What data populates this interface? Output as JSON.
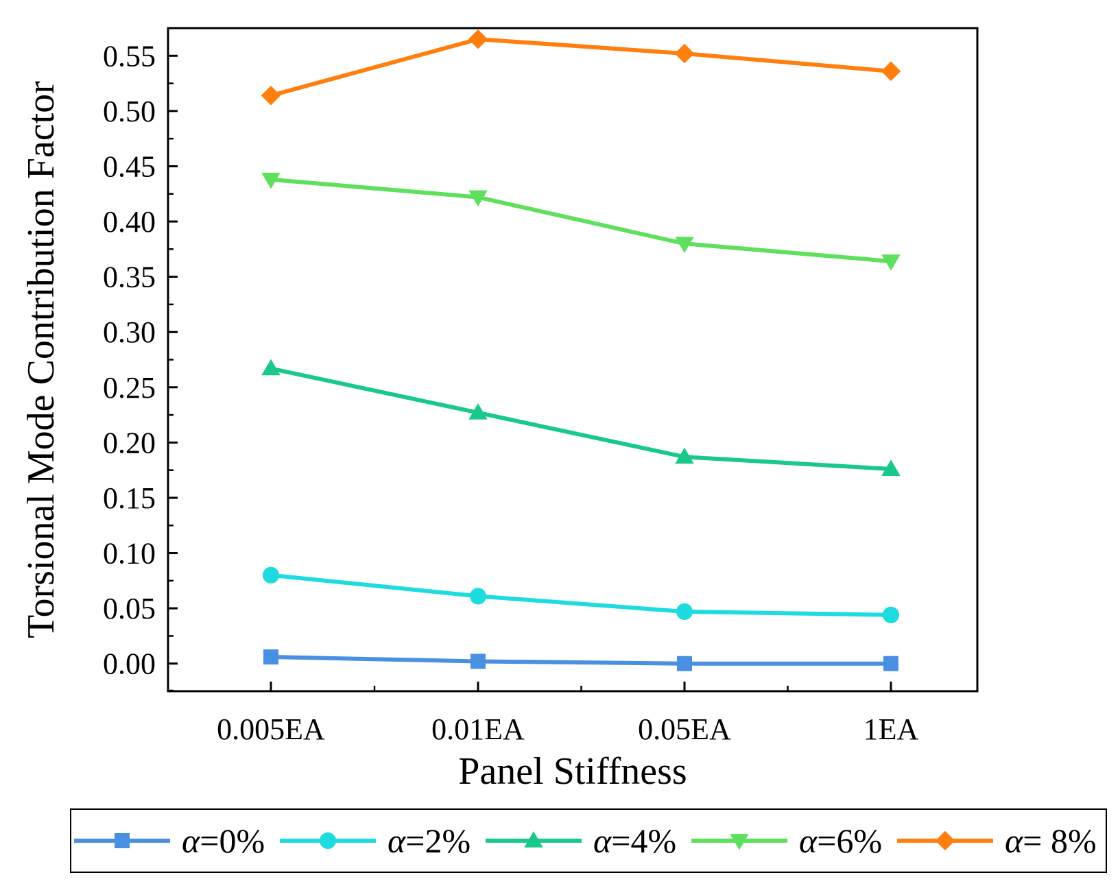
{
  "chart_data": {
    "type": "line",
    "xlabel": "Panel Stiffness",
    "ylabel": "Torsional Mode Contribution Factor",
    "categories": [
      "0.005EA",
      "0.01EA",
      "0.05EA",
      "1EA"
    ],
    "ylim": [
      -0.025,
      0.575
    ],
    "yticks": [
      "0.00",
      "0.05",
      "0.10",
      "0.15",
      "0.20",
      "0.25",
      "0.30",
      "0.35",
      "0.40",
      "0.45",
      "0.50",
      "0.55"
    ],
    "grid": false,
    "legend_position": "bottom",
    "series": [
      {
        "name": "α=0%",
        "symbol": "α",
        "suffix": "=0%",
        "marker": "square",
        "color": "#4A90E2",
        "values": [
          0.006,
          0.002,
          0.0,
          0.0
        ]
      },
      {
        "name": "α=2%",
        "symbol": "α",
        "suffix": "=2%",
        "marker": "circle",
        "color": "#1EDBE0",
        "values": [
          0.08,
          0.061,
          0.047,
          0.044
        ]
      },
      {
        "name": "α=4%",
        "symbol": "α",
        "suffix": "=4%",
        "marker": "triangle-up",
        "color": "#1AC98A",
        "values": [
          0.267,
          0.227,
          0.187,
          0.176
        ]
      },
      {
        "name": "α=6%",
        "symbol": "α",
        "suffix": "=6%",
        "marker": "triangle-down",
        "color": "#5FE05C",
        "values": [
          0.438,
          0.422,
          0.38,
          0.364
        ]
      },
      {
        "name": "α= 8%",
        "symbol": "α",
        "suffix": "= 8%",
        "marker": "diamond",
        "color": "#FF7F0E",
        "values": [
          0.514,
          0.565,
          0.552,
          0.536
        ]
      }
    ]
  }
}
